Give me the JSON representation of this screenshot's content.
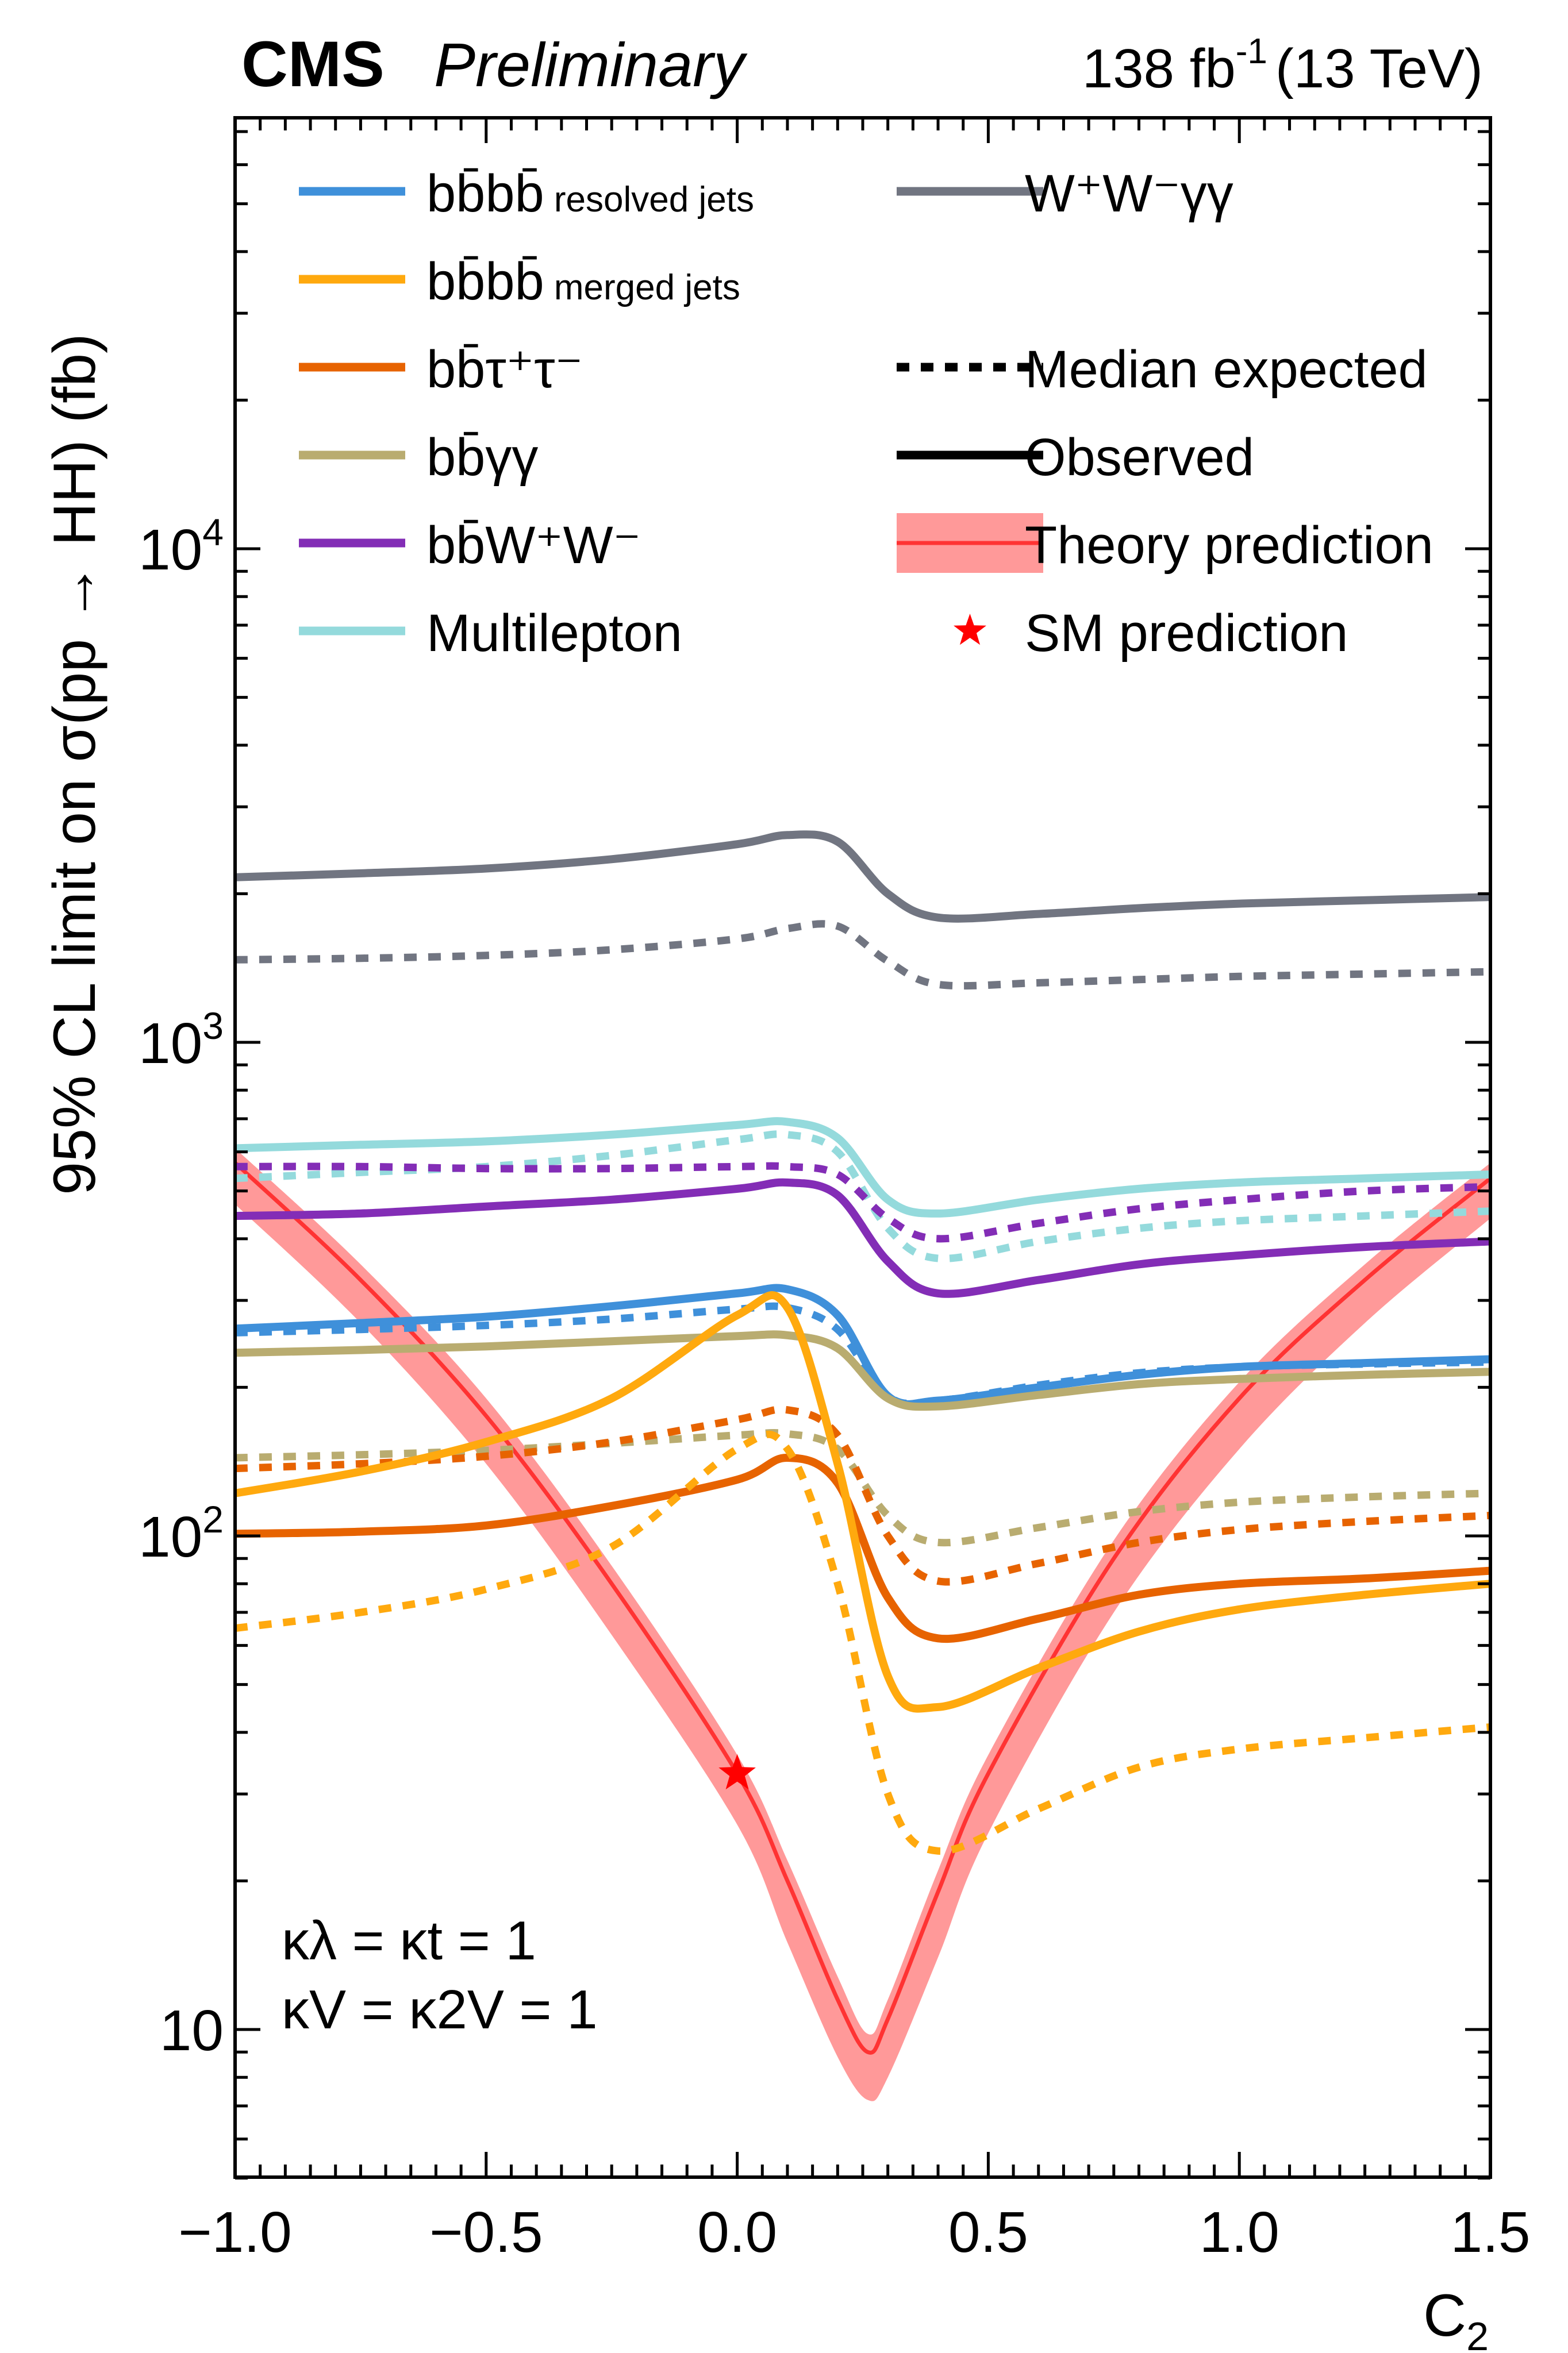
{
  "chart_data": {
    "type": "line",
    "title_left_bold": "CMS",
    "title_left_italic": "Preliminary",
    "title_right": {
      "lumi": "138 fb",
      "lumi_exp": "-1",
      "energy": "(13 TeV)"
    },
    "xlabel": "C",
    "xlabel_sub": "2",
    "ylabel": "95% CL limit on σ(pp → HH) (fb)",
    "xlim": [
      -1.0,
      1.5
    ],
    "ylim": [
      5.0,
      75000
    ],
    "yscale": "log",
    "x_ticks": [
      {
        "value": -1.0,
        "label": "−1.0"
      },
      {
        "value": -0.5,
        "label": "−0.5"
      },
      {
        "value": 0.0,
        "label": "0.0"
      },
      {
        "value": 0.5,
        "label": "0.5"
      },
      {
        "value": 1.0,
        "label": "1.0"
      },
      {
        "value": 1.5,
        "label": "1.5"
      }
    ],
    "y_ticks": [
      {
        "value": 10,
        "base": "10",
        "exp": ""
      },
      {
        "value": 100,
        "base": "10",
        "exp": "2"
      },
      {
        "value": 1000,
        "base": "10",
        "exp": "3"
      },
      {
        "value": 10000,
        "base": "10",
        "exp": "4"
      }
    ],
    "annotation": {
      "line1": "κλ = κt = 1",
      "line2": "κV = κ2V = 1"
    },
    "legend_position": "top",
    "legend": [
      {
        "key": "bbbb_resolved",
        "label": "bb̄bb̄",
        "small": "resolved jets",
        "color": "#3f90da",
        "style": "line"
      },
      {
        "key": "bbbb_merged",
        "label": "bb̄bb̄",
        "small": "merged jets",
        "color": "#ffa90e",
        "style": "line"
      },
      {
        "key": "bbtautau",
        "label": "bb̄τ⁺τ⁻",
        "small": "",
        "color": "#e76300",
        "style": "line"
      },
      {
        "key": "bbgg",
        "label": "bb̄γγ",
        "small": "",
        "color": "#b9ac70",
        "style": "line"
      },
      {
        "key": "bbww",
        "label": "bb̄W⁺W⁻",
        "small": "",
        "color": "#832db6",
        "style": "line"
      },
      {
        "key": "multilepton",
        "label": "Multilepton",
        "small": "",
        "color": "#94dadc",
        "style": "line"
      },
      {
        "key": "wwgg",
        "label": "W⁺W⁻γγ",
        "small": "",
        "color": "#717581",
        "style": "line"
      },
      {
        "key": "expected",
        "label": "Median expected",
        "small": "",
        "color": "#000000",
        "style": "dotted"
      },
      {
        "key": "observed",
        "label": "Observed",
        "small": "",
        "color": "#000000",
        "style": "solid"
      },
      {
        "key": "theory",
        "label": "Theory prediction",
        "small": "",
        "color": "#ff3333",
        "band_color": "#ff9999",
        "style": "band"
      },
      {
        "key": "sm",
        "label": "SM prediction",
        "small": "",
        "color": "#ff0000",
        "style": "star"
      }
    ],
    "x": [
      -1.0,
      -0.75,
      -0.5,
      -0.25,
      0.0,
      0.1,
      0.2,
      0.3,
      0.4,
      0.6,
      0.8,
      1.0,
      1.25,
      1.5
    ],
    "series": [
      {
        "name": "W+W-γγ observed",
        "color": "#717581",
        "dash": false,
        "values": [
          2160,
          2200,
          2250,
          2350,
          2520,
          2630,
          2550,
          2000,
          1790,
          1820,
          1870,
          1910,
          1940,
          1970
        ]
      },
      {
        "name": "W+W-γγ expected",
        "color": "#717581",
        "dash": true,
        "values": [
          1470,
          1480,
          1500,
          1540,
          1620,
          1700,
          1720,
          1460,
          1310,
          1320,
          1340,
          1360,
          1375,
          1390
        ]
      },
      {
        "name": "Multilepton observed",
        "color": "#94dadc",
        "dash": false,
        "values": [
          610,
          620,
          630,
          650,
          680,
          690,
          640,
          480,
          450,
          480,
          505,
          520,
          530,
          540
        ]
      },
      {
        "name": "Multilepton expected",
        "color": "#94dadc",
        "dash": true,
        "values": [
          530,
          545,
          560,
          590,
          635,
          650,
          600,
          420,
          365,
          395,
          420,
          435,
          445,
          455
        ]
      },
      {
        "name": "bbWW expected",
        "color": "#832db6",
        "dash": true,
        "values": [
          560,
          560,
          555,
          555,
          560,
          560,
          540,
          440,
          400,
          430,
          460,
          480,
          500,
          510
        ]
      },
      {
        "name": "bbWW observed",
        "color": "#832db6",
        "dash": false,
        "values": [
          445,
          450,
          465,
          480,
          505,
          520,
          490,
          360,
          310,
          330,
          355,
          370,
          385,
          395
        ]
      },
      {
        "name": "bbbb resolved observed",
        "color": "#3f90da",
        "dash": false,
        "values": [
          263,
          270,
          278,
          292,
          310,
          316,
          280,
          192,
          188,
          200,
          212,
          220,
          224,
          228
        ]
      },
      {
        "name": "bbbb resolved expected",
        "color": "#3f90da",
        "dash": true,
        "values": [
          258,
          262,
          267,
          275,
          288,
          290,
          262,
          192,
          188,
          202,
          214,
          220,
          223,
          225
        ]
      },
      {
        "name": "bbγγ observed",
        "color": "#b9ac70",
        "dash": false,
        "values": [
          235,
          238,
          242,
          248,
          254,
          255,
          240,
          190,
          183,
          193,
          203,
          208,
          212,
          215
        ]
      },
      {
        "name": "bbγγ expected",
        "color": "#b9ac70",
        "dash": true,
        "values": [
          144,
          146,
          149,
          154,
          160,
          161,
          150,
          110,
          97,
          104,
          112,
          117,
          120,
          122
        ]
      },
      {
        "name": "bbττ expected",
        "color": "#e76300",
        "dash": true,
        "values": [
          137,
          140,
          145,
          155,
          172,
          180,
          160,
          100,
          81,
          88,
          97,
          103,
          107,
          110
        ]
      },
      {
        "name": "bbττ observed",
        "color": "#e76300",
        "dash": false,
        "values": [
          101,
          102,
          105,
          115,
          130,
          144,
          128,
          75,
          62,
          68,
          76,
          80,
          82,
          85
        ]
      },
      {
        "name": "bbbb merged observed",
        "color": "#ffa90e",
        "dash": false,
        "values": [
          122,
          135,
          155,
          190,
          280,
          290,
          140,
          52,
          45,
          54,
          64,
          71,
          76,
          80
        ]
      },
      {
        "name": "bbbb merged expected",
        "color": "#ffa90e",
        "dash": true,
        "values": [
          65,
          70,
          78,
          95,
          150,
          150,
          80,
          30,
          23,
          28,
          34,
          37,
          39,
          41
        ]
      }
    ],
    "theory": {
      "color": "#ff3333",
      "band_color": "#ff9999",
      "x": [
        -1.0,
        -0.75,
        -0.5,
        -0.25,
        0.0,
        0.1,
        0.2,
        0.26,
        0.3,
        0.4,
        0.5,
        0.75,
        1.0,
        1.25,
        1.5
      ],
      "central": [
        570,
        330,
        175,
        80,
        33,
        20,
        11.5,
        9.0,
        10.5,
        19,
        33,
        90,
        190,
        330,
        530
      ],
      "low": [
        470,
        270,
        140,
        63,
        26,
        15,
        8.8,
        7.2,
        8.0,
        14,
        25,
        70,
        150,
        270,
        440
      ],
      "high": [
        610,
        355,
        190,
        87,
        36,
        22,
        12.8,
        9.8,
        11.5,
        21,
        36,
        98,
        205,
        355,
        570
      ]
    },
    "sm_point": {
      "x": 0.0,
      "y": 33
    }
  }
}
